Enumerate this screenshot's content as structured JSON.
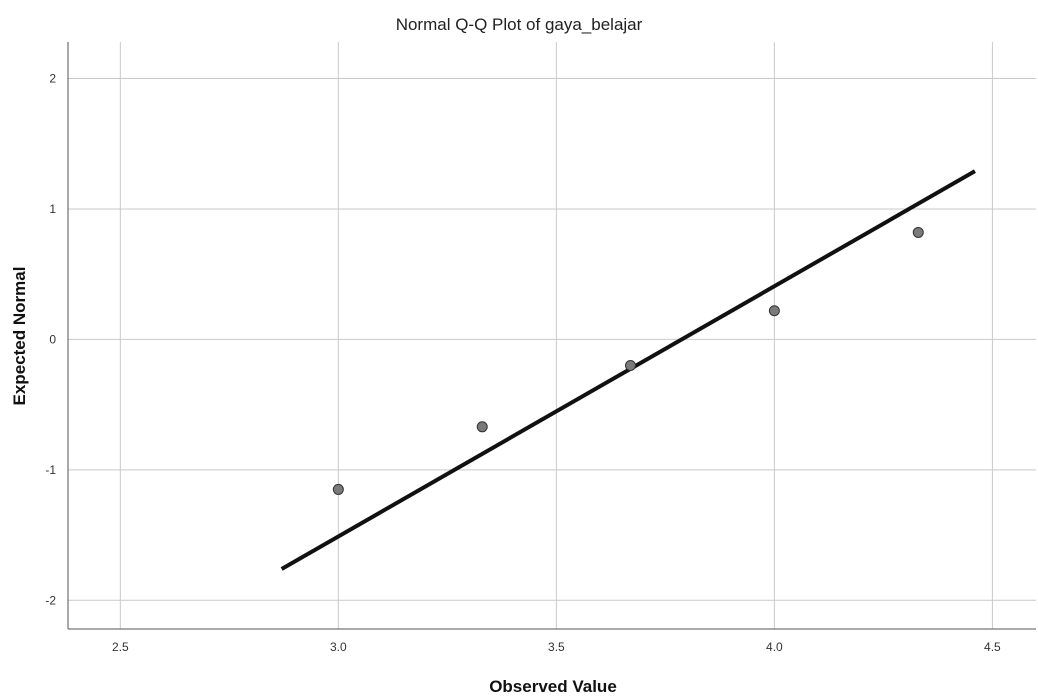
{
  "chart_data": {
    "type": "scatter",
    "title": "Normal Q-Q Plot of gaya_belajar",
    "xlabel": "Observed Value",
    "ylabel": "Expected Normal",
    "xlim": [
      2.38,
      4.6
    ],
    "ylim": [
      -2.22,
      2.28
    ],
    "x_ticks": [
      2.5,
      3.0,
      3.5,
      4.0,
      4.5
    ],
    "x_tick_labels": [
      "2.5",
      "3.0",
      "3.5",
      "4.0",
      "4.5"
    ],
    "y_ticks": [
      2,
      1,
      0,
      -1,
      -2
    ],
    "y_tick_labels": [
      "2",
      "1",
      "0",
      "-1",
      "-2"
    ],
    "grid": true,
    "legend": "none",
    "series": [
      {
        "x": [
          3.0,
          3.33,
          3.67,
          4.0,
          4.33
        ],
        "y": [
          -1.15,
          -0.67,
          -0.2,
          0.22,
          0.82
        ]
      }
    ],
    "reference_line": {
      "x": [
        2.87,
        4.46
      ],
      "y": [
        -1.76,
        1.29
      ]
    },
    "colors": {
      "point_fill": "#7a7a7a",
      "point_stroke": "#333333",
      "line": "#111111",
      "grid": "#c9c9c9"
    }
  }
}
